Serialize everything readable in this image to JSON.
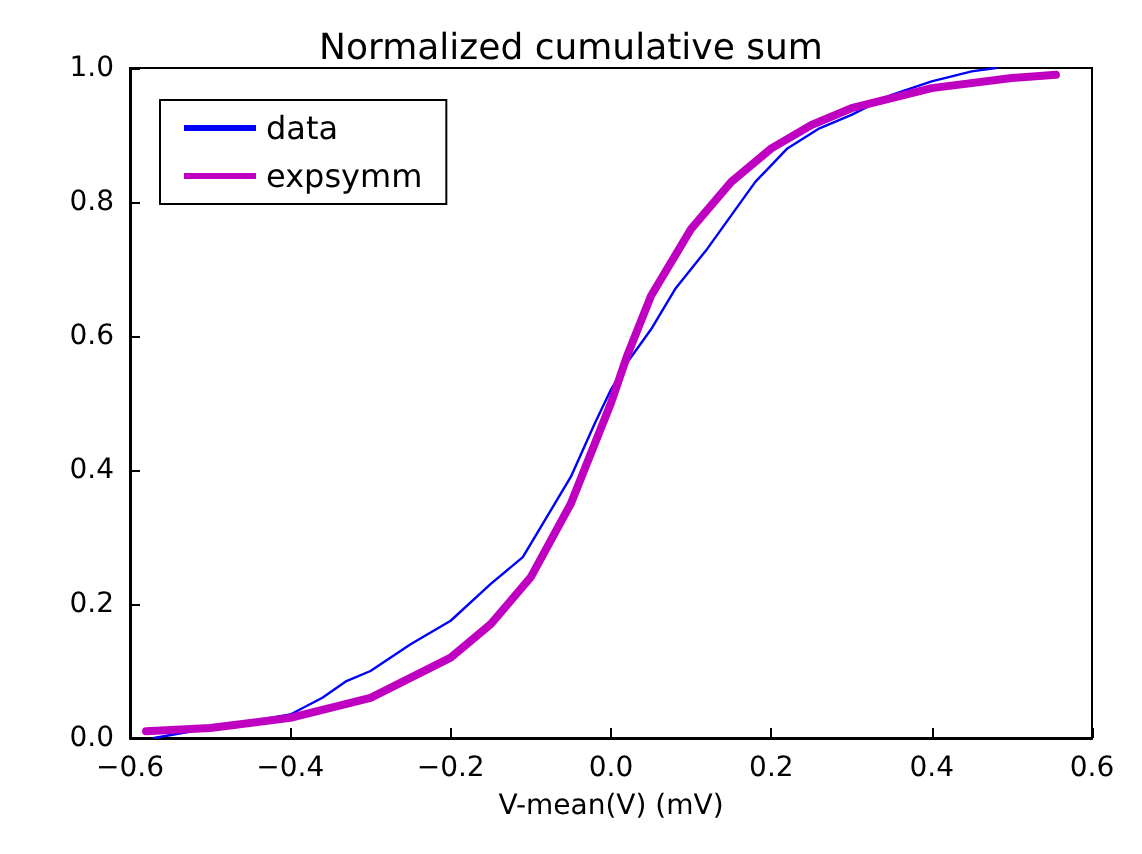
{
  "chart_data": {
    "type": "line",
    "title": "Normalized cumulative sum",
    "xlabel": "V-mean(V) (mV)",
    "xlim": [
      -0.6,
      0.6
    ],
    "xticks": [
      -0.6,
      -0.4,
      -0.2,
      {
        "value": 0,
        "label": "0.0"
      },
      0.2,
      0.4,
      0.6
    ],
    "ylim": [
      0,
      1
    ],
    "yticks": [
      {
        "value": 0,
        "label": "0.0"
      },
      0.2,
      0.4,
      0.6,
      0.8,
      {
        "value": 1,
        "label": "1.0"
      }
    ],
    "grid": false,
    "legend": "top left",
    "marker": "none",
    "series": [
      {
        "name": "data",
        "color": "#0000ff",
        "x": [
          -0.57,
          -0.5,
          -0.45,
          -0.4,
          -0.36,
          -0.33,
          -0.3,
          -0.25,
          -0.2,
          -0.15,
          -0.11,
          -0.08,
          -0.05,
          -0.02,
          0.0,
          0.02,
          0.05,
          0.08,
          0.12,
          0.15,
          0.18,
          0.22,
          0.26,
          0.3,
          0.35,
          0.4,
          0.45,
          0.48
        ],
        "values": [
          0.0,
          0.015,
          0.025,
          0.035,
          0.06,
          0.085,
          0.1,
          0.14,
          0.175,
          0.23,
          0.27,
          0.33,
          0.39,
          0.47,
          0.52,
          0.56,
          0.61,
          0.67,
          0.73,
          0.78,
          0.83,
          0.88,
          0.91,
          0.93,
          0.96,
          0.98,
          0.995,
          1.0
        ]
      },
      {
        "name": "expsymm",
        "color": "#c000c0",
        "x": [
          -0.58,
          -0.5,
          -0.4,
          -0.3,
          -0.2,
          -0.15,
          -0.1,
          -0.05,
          0.0,
          0.02,
          0.05,
          0.1,
          0.15,
          0.2,
          0.25,
          0.3,
          0.4,
          0.5,
          0.555
        ],
        "values": [
          0.01,
          0.015,
          0.03,
          0.06,
          0.12,
          0.17,
          0.24,
          0.35,
          0.5,
          0.57,
          0.66,
          0.76,
          0.83,
          0.88,
          0.915,
          0.94,
          0.97,
          0.985,
          0.99
        ]
      }
    ]
  }
}
